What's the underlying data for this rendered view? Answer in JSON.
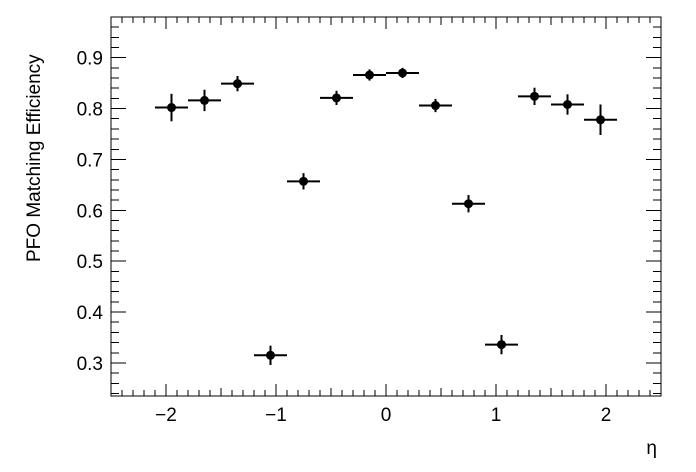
{
  "chart_data": {
    "type": "scatter",
    "title": "",
    "xlabel": "η",
    "ylabel": "PFO Matching Efficiency",
    "xlim": [
      -2.5,
      2.5
    ],
    "ylim": [
      0.235,
      0.98
    ],
    "grid": false,
    "legend": "none",
    "x_ticks": [
      -2,
      -1,
      0,
      1,
      2
    ],
    "x_tick_labels": [
      "−2",
      "−1",
      "0",
      "1",
      "2"
    ],
    "y_ticks": [
      0.3,
      0.4,
      0.5,
      0.6,
      0.7,
      0.8,
      0.9
    ],
    "y_tick_labels": [
      "0.3",
      "0.4",
      "0.5",
      "0.6",
      "0.7",
      "0.8",
      "0.9"
    ],
    "bin_half_width": 0.15,
    "series": [
      {
        "x": [
          -1.95,
          -1.65,
          -1.35,
          -1.05,
          -0.75,
          -0.45,
          -0.15,
          0.15,
          0.45,
          0.75,
          1.05,
          1.35,
          1.65,
          1.95
        ],
        "y": [
          0.802,
          0.816,
          0.849,
          0.315,
          0.657,
          0.821,
          0.866,
          0.87,
          0.806,
          0.613,
          0.336,
          0.824,
          0.808,
          0.778
        ],
        "yerr": [
          0.027,
          0.021,
          0.015,
          0.019,
          0.016,
          0.014,
          0.011,
          0.01,
          0.013,
          0.017,
          0.019,
          0.017,
          0.02,
          0.03
        ]
      }
    ],
    "color": "#000000"
  }
}
